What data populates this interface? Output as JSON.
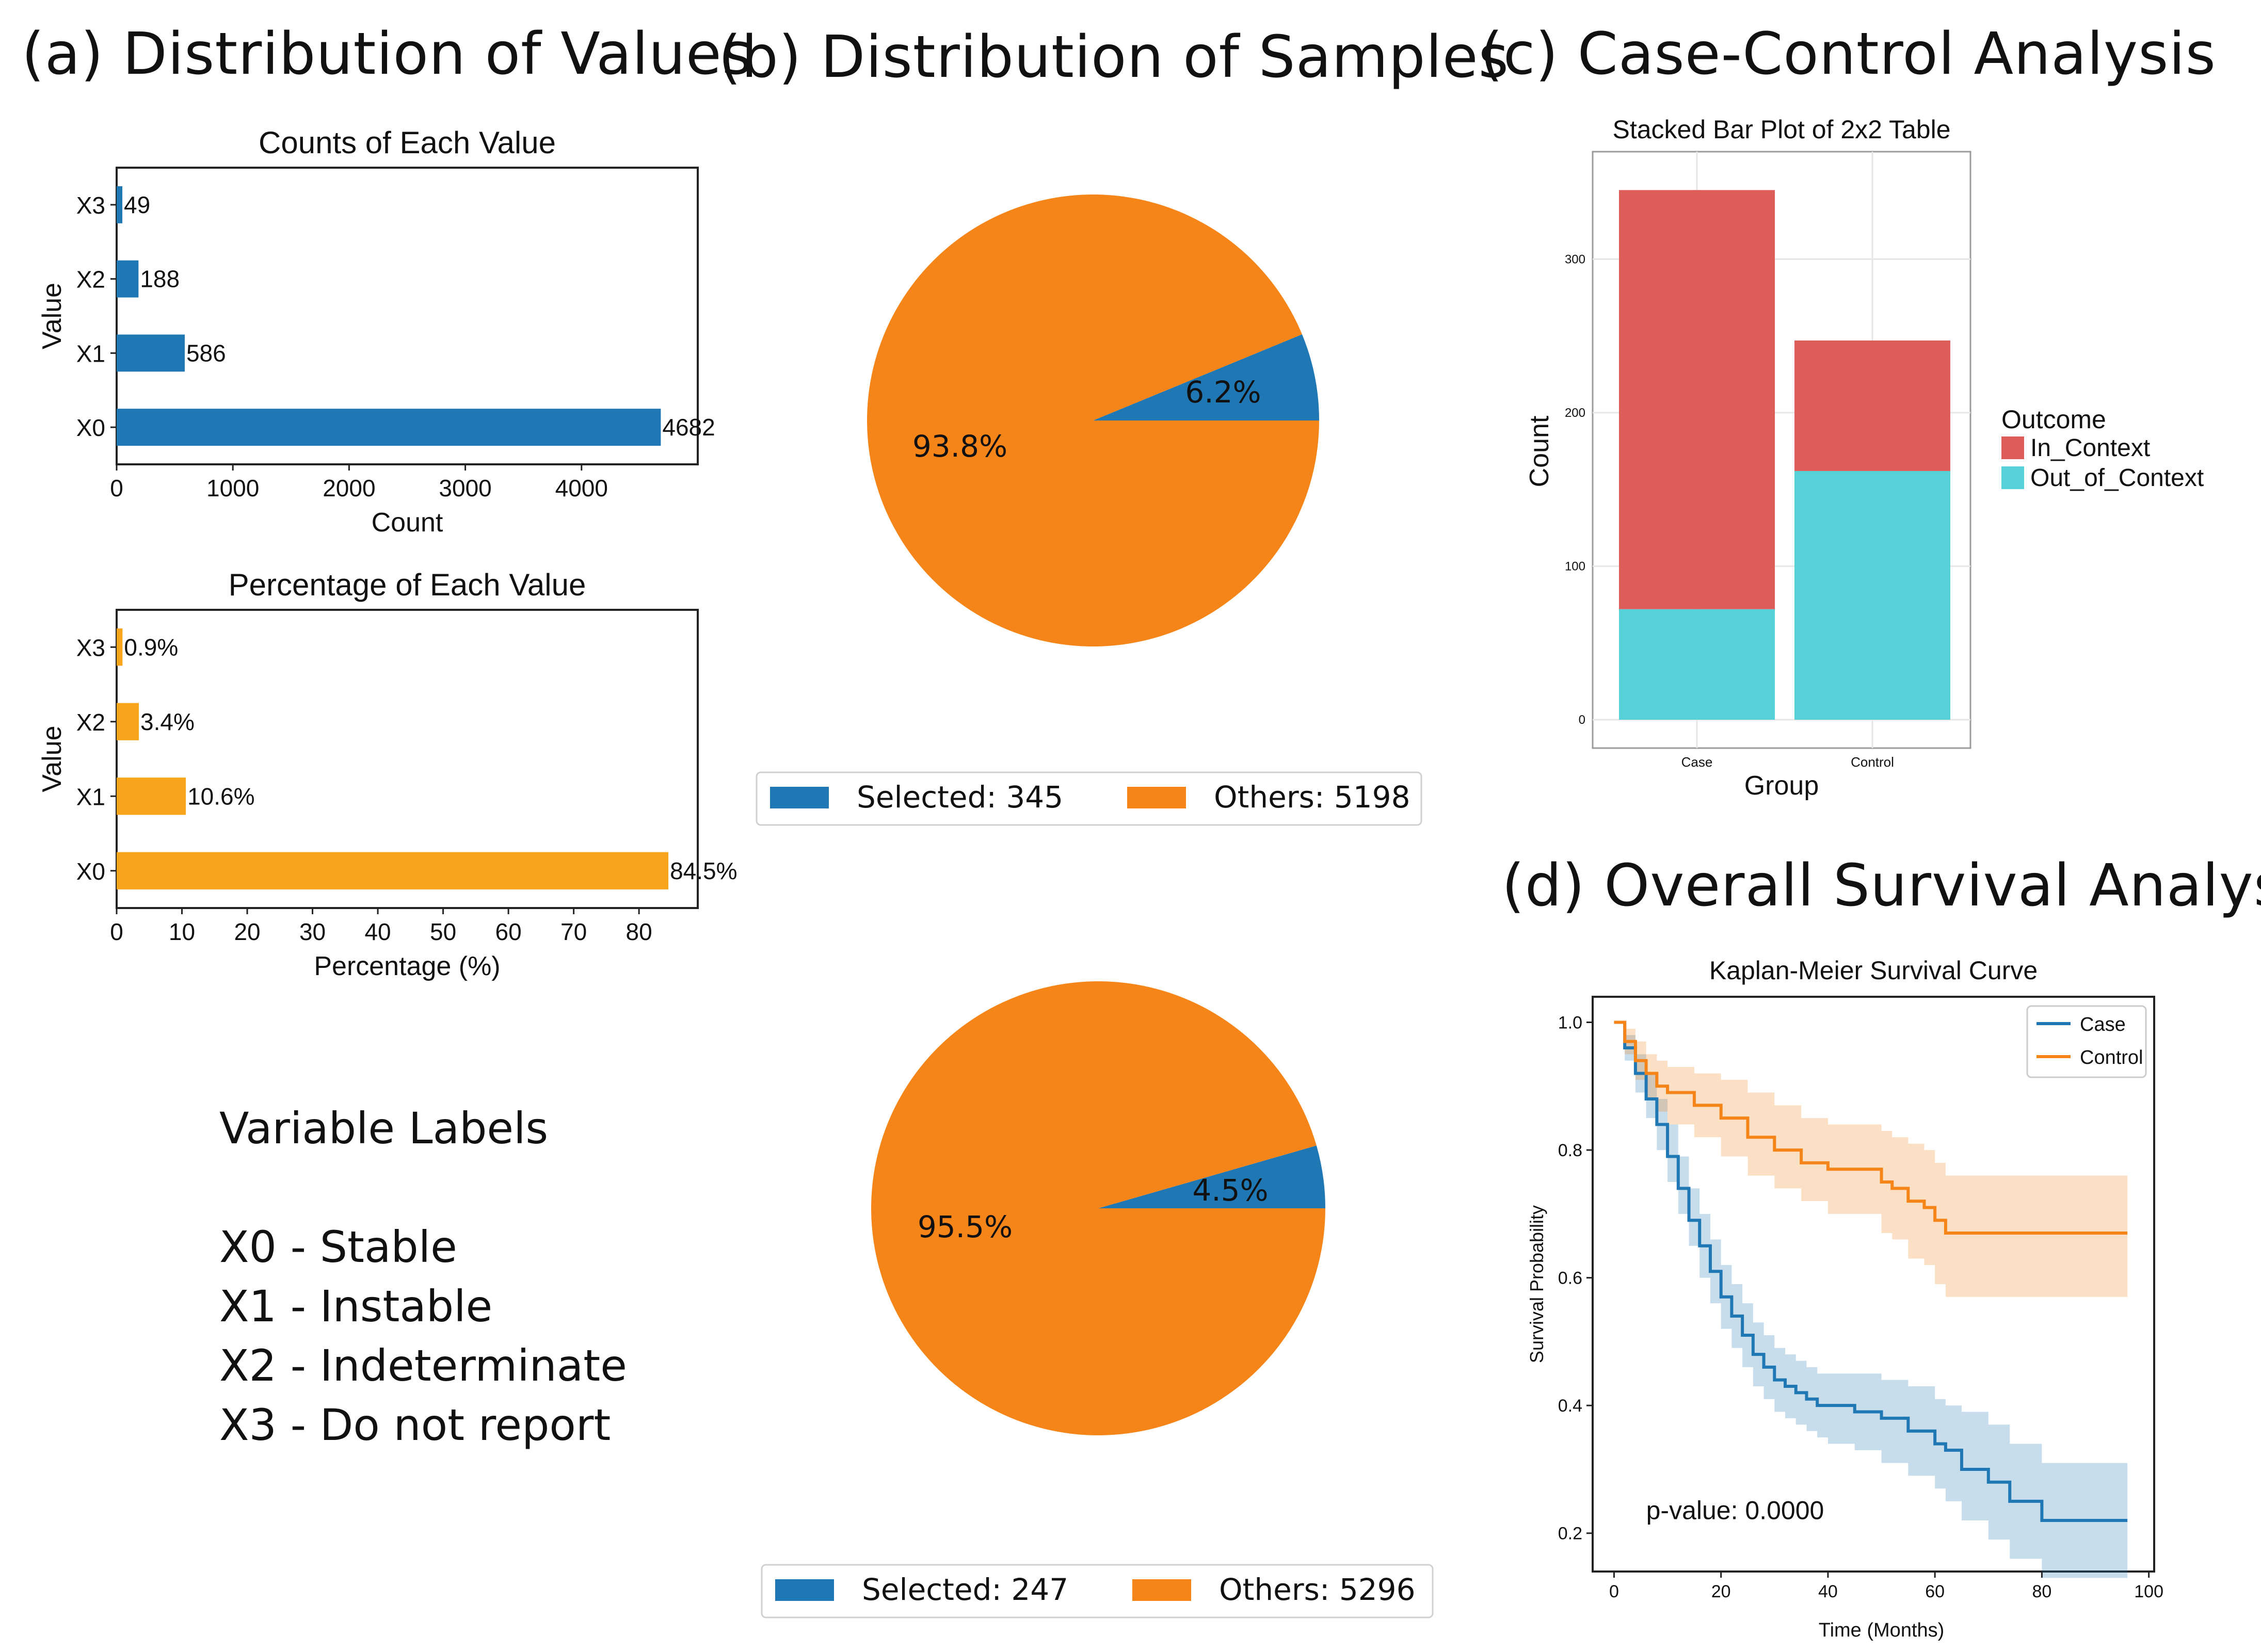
{
  "panels": {
    "a": "(a) Distribution of Values",
    "b": "(b) Distribution of Samples",
    "c": "(c) Case-Control Analysis",
    "d": "(d) Overall Survival Analysis"
  },
  "colors": {
    "blue": "#1f77b4",
    "orange": "#f58518",
    "amber": "#f8a51c",
    "red": "#dc5d59",
    "cyan": "#57d1d8"
  },
  "chart_data": [
    {
      "id": "counts",
      "type": "bar",
      "orientation": "horizontal",
      "title": "Counts of Each Value",
      "xlabel": "Count",
      "ylabel": "Value",
      "categories": [
        "X3",
        "X2",
        "X1",
        "X0"
      ],
      "values": [
        49,
        188,
        586,
        4682
      ],
      "value_labels": [
        "49",
        "188",
        "586",
        "4682"
      ],
      "xlim": [
        0,
        5000
      ],
      "xticks": [
        0,
        1000,
        2000,
        3000,
        4000
      ]
    },
    {
      "id": "percentage",
      "type": "bar",
      "orientation": "horizontal",
      "title": "Percentage of Each Value",
      "xlabel": "Percentage (%)",
      "ylabel": "Value",
      "categories": [
        "X3",
        "X2",
        "X1",
        "X0"
      ],
      "values": [
        0.9,
        3.4,
        10.6,
        84.5
      ],
      "value_labels": [
        "0.9%",
        "3.4%",
        "10.6%",
        "84.5%"
      ],
      "xlim": [
        0,
        89
      ],
      "xticks": [
        0,
        10,
        20,
        30,
        40,
        50,
        60,
        70,
        80
      ]
    },
    {
      "id": "pie1",
      "type": "pie",
      "slices": [
        {
          "name": "Selected",
          "value": 345,
          "pct_label": "6.2%"
        },
        {
          "name": "Others",
          "value": 5198,
          "pct_label": "93.8%"
        }
      ],
      "legend": [
        "Selected: 345",
        "Others: 5198"
      ]
    },
    {
      "id": "pie2",
      "type": "pie",
      "slices": [
        {
          "name": "Selected",
          "value": 247,
          "pct_label": "4.5%"
        },
        {
          "name": "Others",
          "value": 5296,
          "pct_label": "95.5%"
        }
      ],
      "legend": [
        "Selected: 247",
        "Others: 5296"
      ]
    },
    {
      "id": "stacked",
      "type": "bar",
      "stacked": true,
      "title": "Stacked Bar Plot of 2x2 Table",
      "xlabel": "Group",
      "ylabel": "Count",
      "categories": [
        "Case",
        "Control"
      ],
      "series": [
        {
          "name": "Out_of_Context",
          "values": [
            72,
            162
          ]
        },
        {
          "name": "In_Context",
          "values": [
            273,
            85
          ]
        }
      ],
      "legend_title": "Outcome",
      "legend_entries": [
        "In_Context",
        "Out_of_Context"
      ],
      "ylim": [
        0,
        370
      ],
      "yticks": [
        0,
        100,
        200,
        300
      ]
    },
    {
      "id": "km",
      "type": "line",
      "title": "Kaplan-Meier Survival Curve",
      "xlabel": "Time (Months)",
      "ylabel": "Survival Probability",
      "xlim": [
        -4,
        101
      ],
      "ylim": [
        0.14,
        1.04
      ],
      "xticks": [
        0,
        20,
        40,
        60,
        80,
        100
      ],
      "yticks": [
        0.2,
        0.4,
        0.6,
        0.8,
        1.0
      ],
      "annotation": "p-value: 0.0000",
      "series": [
        {
          "name": "Case",
          "x": [
            0,
            2,
            4,
            6,
            8,
            10,
            12,
            14,
            16,
            18,
            20,
            22,
            24,
            26,
            28,
            30,
            32,
            34,
            36,
            38,
            40,
            45,
            50,
            55,
            60,
            62,
            65,
            70,
            74,
            80,
            96
          ],
          "y": [
            1.0,
            0.96,
            0.92,
            0.88,
            0.84,
            0.79,
            0.74,
            0.69,
            0.65,
            0.61,
            0.57,
            0.54,
            0.51,
            0.48,
            0.46,
            0.44,
            0.43,
            0.42,
            0.41,
            0.4,
            0.4,
            0.39,
            0.38,
            0.36,
            0.34,
            0.33,
            0.3,
            0.28,
            0.25,
            0.22,
            0.22
          ],
          "lower": [
            1.0,
            0.94,
            0.89,
            0.85,
            0.8,
            0.75,
            0.7,
            0.65,
            0.6,
            0.56,
            0.52,
            0.49,
            0.46,
            0.43,
            0.41,
            0.39,
            0.38,
            0.37,
            0.36,
            0.35,
            0.34,
            0.33,
            0.31,
            0.29,
            0.27,
            0.25,
            0.22,
            0.19,
            0.16,
            0.13,
            0.13
          ],
          "upper": [
            1.0,
            0.98,
            0.95,
            0.92,
            0.88,
            0.84,
            0.79,
            0.74,
            0.7,
            0.66,
            0.62,
            0.59,
            0.56,
            0.53,
            0.51,
            0.49,
            0.48,
            0.47,
            0.46,
            0.45,
            0.45,
            0.45,
            0.44,
            0.43,
            0.41,
            0.4,
            0.39,
            0.37,
            0.34,
            0.31,
            0.31
          ]
        },
        {
          "name": "Control",
          "x": [
            0,
            2,
            4,
            6,
            8,
            10,
            15,
            20,
            25,
            30,
            35,
            40,
            45,
            50,
            52,
            55,
            58,
            60,
            62,
            65,
            96
          ],
          "y": [
            1.0,
            0.97,
            0.94,
            0.92,
            0.9,
            0.89,
            0.87,
            0.85,
            0.82,
            0.8,
            0.78,
            0.77,
            0.77,
            0.75,
            0.74,
            0.72,
            0.71,
            0.69,
            0.67,
            0.67,
            0.67
          ],
          "lower": [
            1.0,
            0.95,
            0.91,
            0.88,
            0.86,
            0.84,
            0.82,
            0.79,
            0.76,
            0.74,
            0.72,
            0.7,
            0.7,
            0.67,
            0.66,
            0.63,
            0.62,
            0.59,
            0.57,
            0.57,
            0.57
          ],
          "upper": [
            1.0,
            0.99,
            0.97,
            0.95,
            0.94,
            0.93,
            0.92,
            0.91,
            0.89,
            0.87,
            0.85,
            0.84,
            0.84,
            0.83,
            0.82,
            0.81,
            0.8,
            0.78,
            0.76,
            0.76,
            0.76
          ]
        }
      ]
    }
  ],
  "variable_labels": {
    "title": "Variable Labels",
    "items": [
      "X0 - Stable",
      "X1 - Instable",
      "X2 - Indeterminate",
      "X3 - Do not report"
    ]
  }
}
